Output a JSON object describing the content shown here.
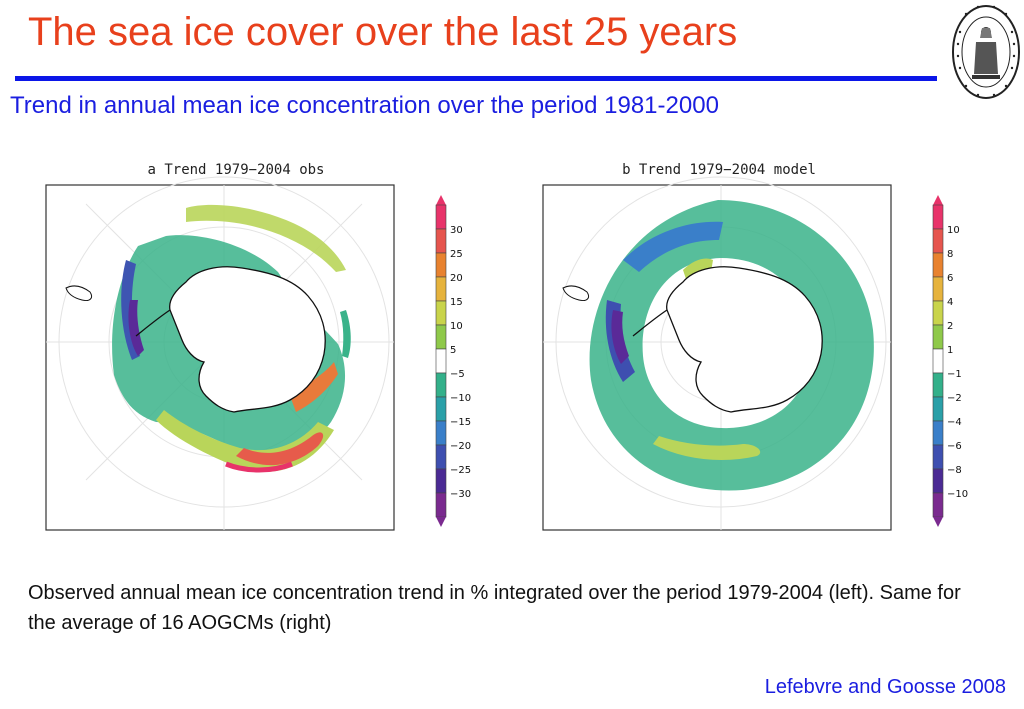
{
  "slide": {
    "title": "The sea ice cover over the last 25 years",
    "subtitle": "Trend in annual mean ice concentration  over the period 1981-2000",
    "caption": "Observed annual mean ice concentration  trend in % integrated over the period 1979-2004 (left). Same for the average of 16 AOGCMs (right)",
    "credit": "Lefebvre and Goosse 2008",
    "logo": {
      "text": "UNIVERSITAS CATHOLICA LOVANIENSIS SEDES SAPIENTIAE",
      "year": "1425",
      "icon": "university-seal-icon"
    }
  },
  "figures": [
    {
      "id": "a",
      "heading": "a Trend 1979−2004 obs",
      "colorbar": {
        "labels": [
          "30",
          "25",
          "20",
          "15",
          "10",
          "5",
          "−5",
          "−10",
          "−15",
          "−20",
          "−25",
          "−30"
        ],
        "colors": [
          "#e8336a",
          "#e6554e",
          "#e8822f",
          "#e6b33d",
          "#c9d44b",
          "#8fc94a",
          "#ffffff",
          "#33b08a",
          "#2aa0a8",
          "#3a7fc9",
          "#3e4fb0",
          "#4b2a94",
          "#7a2a8f"
        ]
      }
    },
    {
      "id": "b",
      "heading": "b Trend 1979−2004 model",
      "colorbar": {
        "labels": [
          "10",
          "8",
          "6",
          "4",
          "2",
          "1",
          "−1",
          "−2",
          "−4",
          "−6",
          "−8",
          "−10"
        ],
        "colors": [
          "#e8336a",
          "#e6554e",
          "#e8822f",
          "#e6b33d",
          "#c9d44b",
          "#8fc94a",
          "#ffffff",
          "#33b08a",
          "#2aa0a8",
          "#3a7fc9",
          "#3e4fb0",
          "#4b2a94",
          "#7a2a8f"
        ]
      }
    }
  ]
}
